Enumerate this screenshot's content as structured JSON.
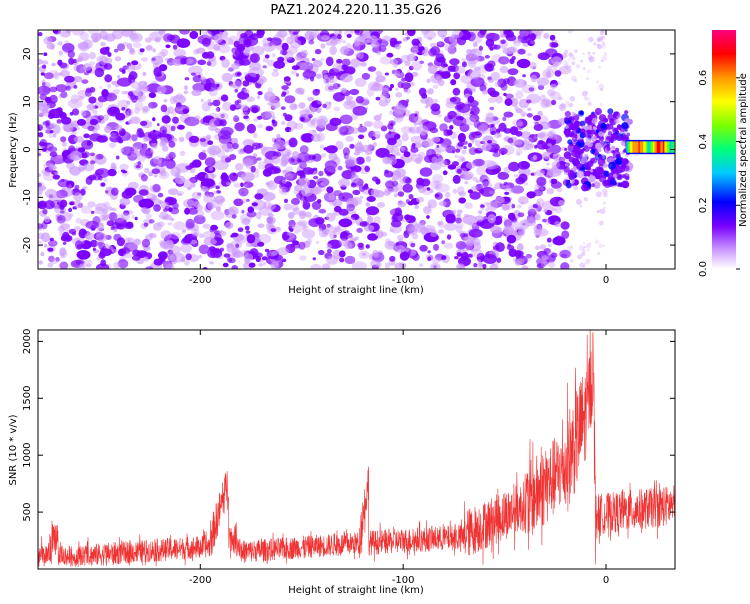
{
  "title": "PAZ1.2024.220.11.35.G26",
  "colors": {
    "snr_line": "#f03232",
    "spectrogram_noise": "#7a00ff",
    "spectrogram_low": "#cc99ff"
  },
  "chart_data": [
    {
      "type": "heatmap",
      "name": "spectrogram",
      "xlabel": "Height of straight line (km)",
      "ylabel": "Frequency (Hz)",
      "xlim": [
        -280,
        34
      ],
      "ylim": [
        -25,
        25
      ],
      "xticks": [
        -200,
        -100,
        0
      ],
      "yticks": [
        -20,
        -10,
        0,
        10,
        20
      ],
      "colorbar": {
        "label": "Normalized spectral amplitude",
        "range": [
          0.0,
          0.75
        ],
        "ticks": [
          0.0,
          0.2,
          0.4,
          0.6
        ],
        "colormap": "rainbow"
      },
      "features": [
        {
          "kind": "noise",
          "x": [
            -280,
            -20
          ],
          "y": [
            -25,
            25
          ],
          "amplitude": 0.1
        },
        {
          "kind": "cluster",
          "x": [
            -20,
            12
          ],
          "y": [
            -8,
            8
          ],
          "amplitude": 0.2
        },
        {
          "kind": "band",
          "x": [
            10,
            34
          ],
          "y": [
            -1,
            2
          ],
          "amplitude": 0.75
        }
      ]
    },
    {
      "type": "line",
      "name": "snr",
      "xlabel": "Height of straight line (km)",
      "ylabel": "SNR (10 * v/v)",
      "xlim": [
        -280,
        34
      ],
      "ylim": [
        0,
        2100
      ],
      "xticks": [
        -200,
        -100,
        0
      ],
      "yticks": [
        500,
        1000,
        1500,
        2000
      ],
      "segments": [
        {
          "x": [
            -280,
            -275
          ],
          "base": [
            110,
            130
          ],
          "noise": 110
        },
        {
          "x": [
            -275,
            -270
          ],
          "base": [
            130,
            320
          ],
          "noise": 150
        },
        {
          "x": [
            -270,
            -195
          ],
          "base": [
            100,
            200
          ],
          "noise": 100
        },
        {
          "x": [
            -195,
            -186
          ],
          "base": [
            250,
            780
          ],
          "noise": 170
        },
        {
          "x": [
            -186,
            -180
          ],
          "base": [
            300,
            200
          ],
          "noise": 120
        },
        {
          "x": [
            -180,
            -121
          ],
          "base": [
            150,
            230
          ],
          "noise": 100
        },
        {
          "x": [
            -121,
            -117
          ],
          "base": [
            350,
            780
          ],
          "noise": 180
        },
        {
          "x": [
            -117,
            -70
          ],
          "base": [
            230,
            280
          ],
          "noise": 110
        },
        {
          "x": [
            -70,
            -40
          ],
          "base": [
            300,
            560
          ],
          "noise": 220
        },
        {
          "x": [
            -40,
            -20
          ],
          "base": [
            560,
            900
          ],
          "noise": 350
        },
        {
          "x": [
            -20,
            -10
          ],
          "base": [
            900,
            1350
          ],
          "noise": 450
        },
        {
          "x": [
            -10,
            -6
          ],
          "base": [
            1350,
            1800
          ],
          "noise": 400
        },
        {
          "x": [
            -6,
            -5
          ],
          "base": [
            1500,
            300
          ],
          "noise": 300
        },
        {
          "x": [
            -5,
            34
          ],
          "base": [
            480,
            560
          ],
          "noise": 180
        }
      ]
    }
  ]
}
